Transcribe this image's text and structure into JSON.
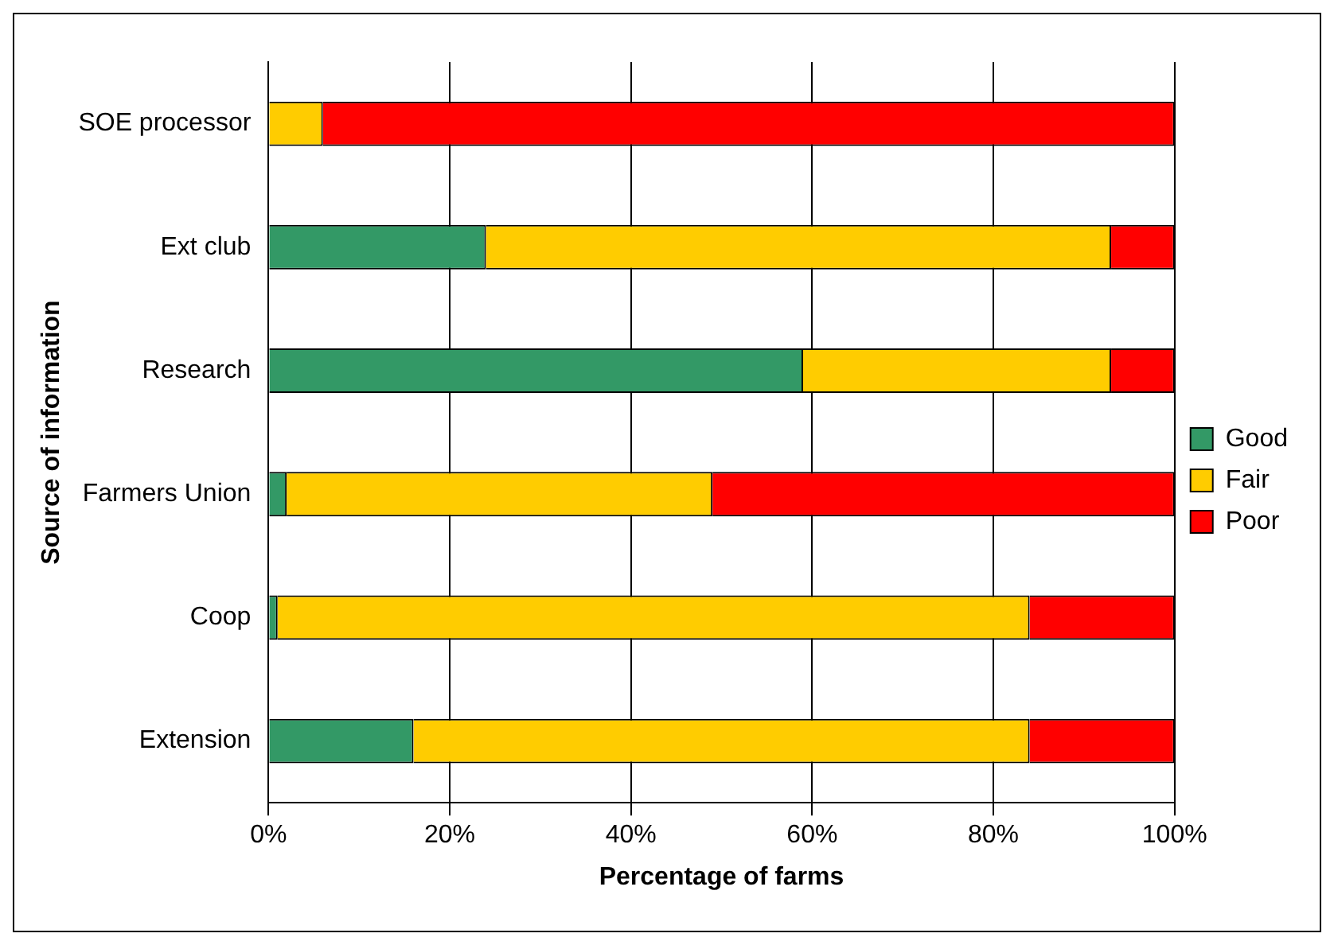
{
  "chart_data": {
    "type": "bar",
    "orientation": "horizontal",
    "stacked": true,
    "xlabel": "Percentage of farms",
    "ylabel": "Source of information",
    "categories": [
      "SOE processor",
      "Ext club",
      "Research",
      "Farmers Union",
      "Coop",
      "Extension"
    ],
    "series": [
      {
        "name": "Good",
        "color": "#339966",
        "values": [
          0,
          24,
          59,
          2,
          1,
          16
        ]
      },
      {
        "name": "Fair",
        "color": "#ffcc00",
        "values": [
          6,
          69,
          34,
          47,
          83,
          68
        ]
      },
      {
        "name": "Poor",
        "color": "#ff0000",
        "values": [
          94,
          7,
          7,
          51,
          16,
          16
        ]
      }
    ],
    "xlim": [
      0,
      100
    ],
    "xticks": [
      {
        "value": 0,
        "label": "0%"
      },
      {
        "value": 20,
        "label": "20%"
      },
      {
        "value": 40,
        "label": "40%"
      },
      {
        "value": 60,
        "label": "60%"
      },
      {
        "value": 80,
        "label": "80%"
      },
      {
        "value": 100,
        "label": "100%"
      }
    ],
    "grid": "x",
    "legend": "right"
  }
}
